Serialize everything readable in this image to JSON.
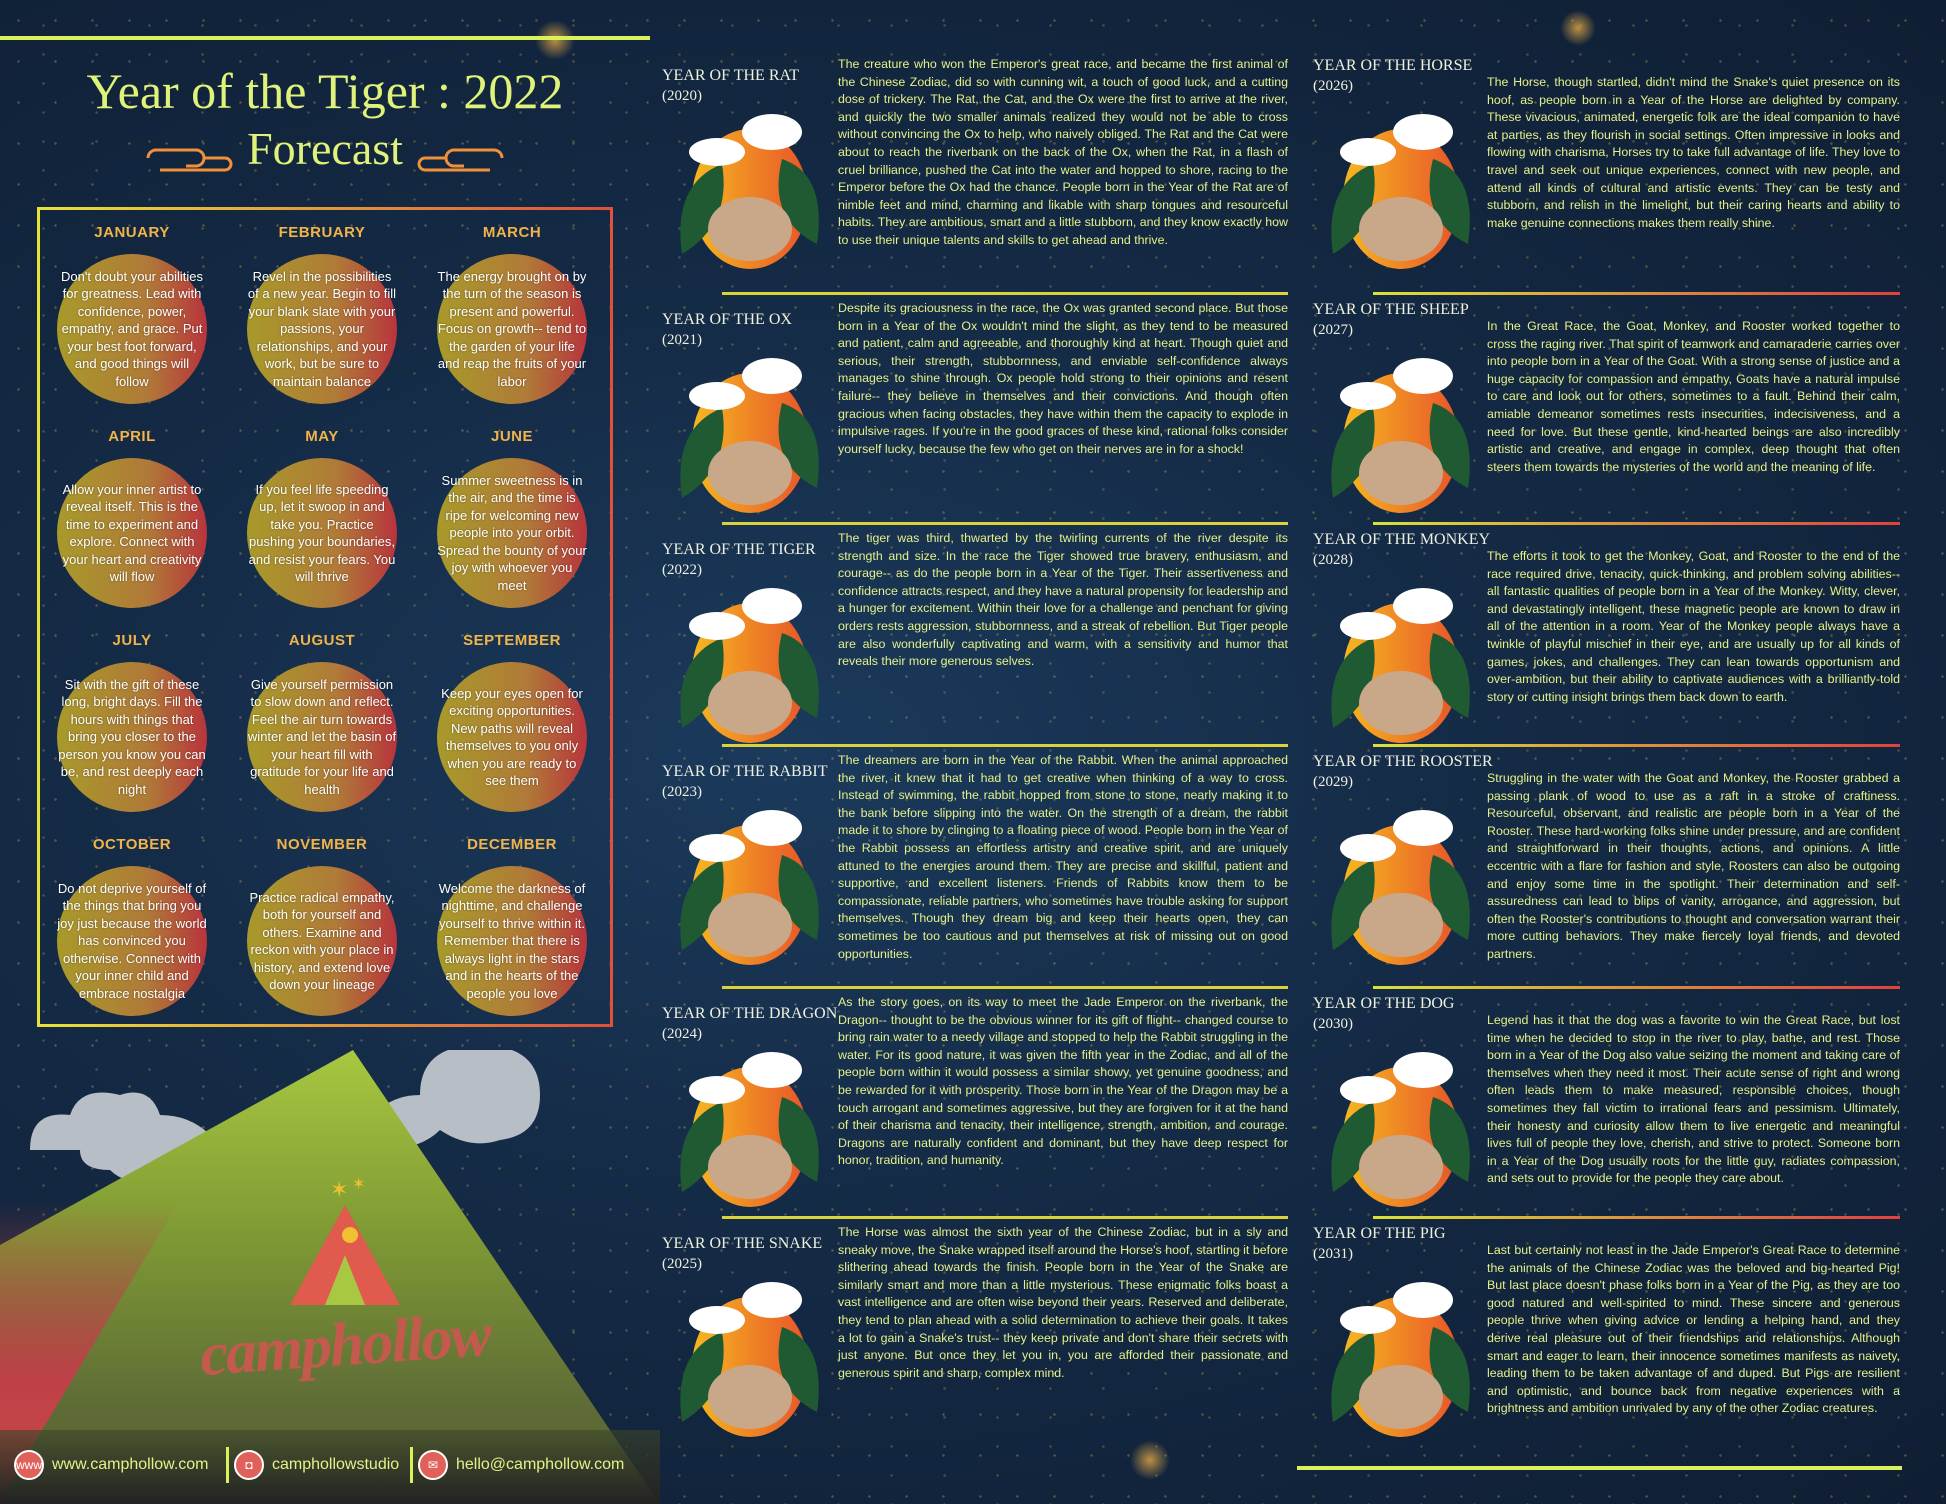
{
  "header": {
    "title": "Year of the Tiger : 2022",
    "subtitle": "Forecast"
  },
  "months": [
    {
      "name": "JANUARY",
      "text": "Don't doubt your abilities for greatness. Lead with confidence, power, empathy, and grace. Put your best foot forward, and good things will follow"
    },
    {
      "name": "FEBRUARY",
      "text": "Revel in the possibilities of a new year. Begin to fill your blank slate with your passions, your relationships, and your work, but be sure to maintain balance"
    },
    {
      "name": "MARCH",
      "text": "The energy brought on by the turn of the season is present and powerful. Focus on growth-- tend to the garden of your life and reap the fruits of your labor"
    },
    {
      "name": "APRIL",
      "text": "Allow your inner artist to reveal itself. This is the time to experiment and explore. Connect with your heart and creativity will flow"
    },
    {
      "name": "MAY",
      "text": "If you feel life speeding up, let it swoop in and take you. Practice pushing your boundaries, and resist your fears. You will thrive"
    },
    {
      "name": "JUNE",
      "text": "Summer sweetness is in the air, and the time is ripe for welcoming new people into your orbit. Spread the bounty of your joy with whoever you meet"
    },
    {
      "name": "JULY",
      "text": "Sit with the gift of these long, bright days. Fill the hours with things that bring you closer to the person you know you can be, and rest deeply each night"
    },
    {
      "name": "AUGUST",
      "text": "Give yourself permission to slow down and reflect. Feel the air turn towards winter and let the basin of your heart fill with gratitude for your life and health"
    },
    {
      "name": "SEPTEMBER",
      "text": "Keep your eyes open for exciting opportunities. New paths will reveal themselves to you only when you are ready to see them"
    },
    {
      "name": "OCTOBER",
      "text": "Do not deprive yourself of the things that bring you joy just because the world has convinced you otherwise. Connect with your inner child and embrace nostalgia"
    },
    {
      "name": "NOVEMBER",
      "text": "Practice radical empathy, both for yourself and others. Examine and reckon with your place in history, and extend love down your lineage"
    },
    {
      "name": "DECEMBER",
      "text": "Welcome the darkness of nighttime, and challenge yourself to thrive within it. Remember that there is always light in the stars and in the hearts of the people you love"
    }
  ],
  "brand": {
    "logo": "camphollow"
  },
  "footer": {
    "website": "www.camphollow.com",
    "instagram": "camphollowstudio",
    "email": "hello@camphollow.com"
  },
  "zodiac": [
    {
      "title": "YEAR OF THE RAT",
      "year": "(2020)",
      "text": "The creature who won the Emperor's great race, and became the first animal of the Chinese Zodiac, did so with cunning wit, a touch of good luck, and a cutting dose of trickery. The Rat, the Cat, and the Ox were the first to arrive at the river, and quickly the two smaller animals realized they would not be able to cross without convincing the Ox to help, who naively obliged. The Rat and the Cat were about to reach the riverbank on the back of the Ox, when the Rat, in a flash of cruel brilliance, pushed the Cat into the water and hopped to shore, racing to the Emperor before the Ox had the chance. People born in the Year of the Rat are of nimble feet and mind, charming and likable with sharp tongues and resourceful habits. They are ambitious, smart and a little stubborn, and they know exactly how to use their unique talents and skills to get ahead and thrive."
    },
    {
      "title": "YEAR OF THE OX",
      "year": "(2021)",
      "text": "Despite its graciousness in the race, the Ox was granted second place. But those born in a Year of the Ox wouldn't mind the slight, as they tend to be measured and patient, calm and agreeable, and thoroughly kind at heart. Though quiet and serious, their strength, stubbornness, and enviable self-confidence always manages to shine through. Ox people hold strong to their opinions and resent failure-- they believe in themselves and their convictions. And though often gracious when facing obstacles, they have within them the capacity to explode in impulsive rages. If you're in the good graces of these kind, rational folks consider yourself lucky, because the few who get on their nerves are in for a shock!"
    },
    {
      "title": "YEAR OF THE TIGER",
      "year": "(2022)",
      "text": "The tiger was third, thwarted by the twirling currents of the river despite its strength and size. In the race the Tiger showed true bravery, enthusiasm, and courage-- as do the people born in a Year of the Tiger. Their assertiveness and confidence attracts respect, and they have a natural propensity for leadership and a hunger for excitement. Within their love for a challenge and penchant for giving orders rests aggression, stubbornness, and a streak of rebellion. But Tiger people are also wonderfully captivating and warm, with a sensitivity and humor that reveals their more generous selves."
    },
    {
      "title": "YEAR OF THE RABBIT",
      "year": "(2023)",
      "text": "The dreamers are born in the Year of the Rabbit. When the animal approached the river, it knew that it had to get creative when thinking of a way to cross. Instead of swimming, the rabbit hopped from stone to stone, nearly making it to the bank before slipping into the water. On the strength of a dream, the rabbit made it to shore by clinging to a floating piece of wood. People born in the Year of the Rabbit possess an effortless artistry and creative spirit, and are uniquely attuned to the energies around them. They are precise and skillful, patient and supportive, and excellent listeners. Friends of Rabbits know them to be compassionate, reliable partners, who sometimes have trouble asking for support themselves. Though they dream big and keep their hearts open, they can sometimes be too cautious and put themselves at risk of missing out on good opportunities."
    },
    {
      "title": "YEAR OF THE DRAGON",
      "year": "(2024)",
      "text": "As the story goes, on its way to meet the Jade Emperor on the riverbank, the Dragon-- thought to be the obvious winner for its gift of flight-- changed course to bring rain water to a needy village and stopped to help the Rabbit struggling in the water. For its good nature, it was given the fifth year in the Zodiac, and all of the people born within it would possess a similar showy, yet genuine goodness, and be rewarded for it with prosperity. Those born in the Year of the Dragon may be a touch arrogant and sometimes aggressive, but they are forgiven for it at the hand of their charisma and tenacity, their intelligence, strength, ambition, and courage. Dragons are naturally confident and dominant, but they have deep respect for honor, tradition, and humanity."
    },
    {
      "title": "YEAR OF THE SNAKE",
      "year": "(2025)",
      "text": "The Horse was almost the sixth year of the Chinese Zodiac, but in a sly and sneaky move, the Snake wrapped itself around the Horse's hoof, startling it before slithering ahead towards the finish. People born in the Year of the Snake are similarly smart and more than a little mysterious. These enigmatic folks boast a vast intelligence and are often wise beyond their years. Reserved and deliberate, they tend to plan ahead with a solid determination to achieve their goals. It takes a lot to gain a Snake's trust-- they keep private and don't share their secrets with just anyone. But once they let you in, you are afforded their passionate and generous spirit and sharp, complex mind."
    },
    {
      "title": "YEAR OF THE HORSE",
      "year": "(2026)",
      "text": "The Horse, though startled, didn't mind the Snake's quiet presence on its hoof, as people born in a Year of the Horse are delighted by company. These vivacious, animated, energetic folk are the ideal companion to have at parties, as they flourish in social settings. Often impressive in looks and flowing with charisma, Horses try to take full advantage of life. They love to travel and seek out unique experiences, connect with new people, and attend all kinds of cultural and artistic events. They can be testy and stubborn, and relish in the limelight, but their caring hearts and ability to make genuine connections makes them really shine."
    },
    {
      "title": "YEAR OF THE SHEEP",
      "year": "(2027)",
      "text": "In the Great Race, the Goat, Monkey, and Rooster worked together to cross the raging river. That spirit of teamwork and camaraderie carries over into people born in a Year of the Goat. With a strong sense of justice and a huge capacity for compassion and empathy, Goats have a natural impulse to care and look out for others, sometimes to a fault. Behind their calm, amiable demeanor sometimes rests insecurities, indecisiveness, and a need for love. But these gentle, kind-hearted beings are also incredibly artistic and creative, and engage in complex, deep thought that often steers them towards the mysteries of the world and the meaning of life."
    },
    {
      "title": "YEAR OF THE MONKEY",
      "year": "(2028)",
      "text": "The efforts it took to get the Monkey, Goat, and Rooster to the end of the race required drive, tenacity, quick-thinking, and problem solving abilities-- all fantastic qualities of people born in a Year of the Monkey. Witty, clever, and devastatingly intelligent, these magnetic people are known to draw in all of the attention in a room. Year of the Monkey people always have a twinkle of playful mischief in their eye, and are usually up for all kinds of games, jokes, and challenges. They can lean towards opportunism and over-ambition, but their ability to captivate audiences with a brilliantly-told story or cutting insight brings them back down to earth."
    },
    {
      "title": "YEAR OF THE ROOSTER",
      "year": "(2029)",
      "text": "Struggling in the water with the Goat and Monkey, the Rooster grabbed a passing plank of wood to use as a raft in a stroke of craftiness. Resourceful, observant, and realistic are people born in a Year of the Rooster. These hard-working folks shine under pressure, and are confident and straightforward in their thoughts, actions, and opinions. A little eccentric with a flare for fashion and style, Roosters can also be outgoing and enjoy some time in the spotlight. Their determination and self-assuredness can lead to blips of vanity, arrogance, and aggression, but often the Rooster's contributions to thought and conversation warrant their more cutting behaviors. They make fiercely loyal friends, and devoted partners."
    },
    {
      "title": "YEAR OF THE DOG",
      "year": "(2030)",
      "text": "Legend has it that the dog was a favorite to win the Great Race, but lost time when he decided to stop in the river to play, bathe, and rest. Those born in a Year of the Dog also value seizing the moment and taking care of themselves when they need it most. Their acute sense of right and wrong often leads them to make measured, responsible choices, though sometimes they fall victim to irrational fears and pessimism. Ultimately, their honesty and curiosity allow them to live energetic and meaningful lives full of people they love, cherish, and strive to protect. Someone born in a Year of the Dog usually roots for the little guy, radiates compassion, and sets out to provide for the people they care about."
    },
    {
      "title": "YEAR OF THE PIG",
      "year": "(2031)",
      "text": "Last but certainly not least in the Jade Emperor's Great Race to determine the animals of the Chinese Zodiac was the beloved and big-hearted Pig! But last place doesn't phase folks born in a Year of the Pig, as they are too good natured and well-spirited to mind. These sincere and generous people thrive when giving advice or lending a helping hand, and they derive real pleasure out of their friendships and relationships. Although smart and eager to learn, their innocence sometimes manifests as naivety, leading them to be taken advantage of and duped. But Pigs are resilient and optimistic, and bounce back from negative experiences with a brightness and ambition unrivaled by any of the other Zodiac creatures."
    }
  ],
  "colors": {
    "background": "#142a45",
    "accent": "#d9f25c",
    "text": "#e4f08a",
    "month_title": "#f0b44a",
    "brand": "#c45a4e"
  }
}
